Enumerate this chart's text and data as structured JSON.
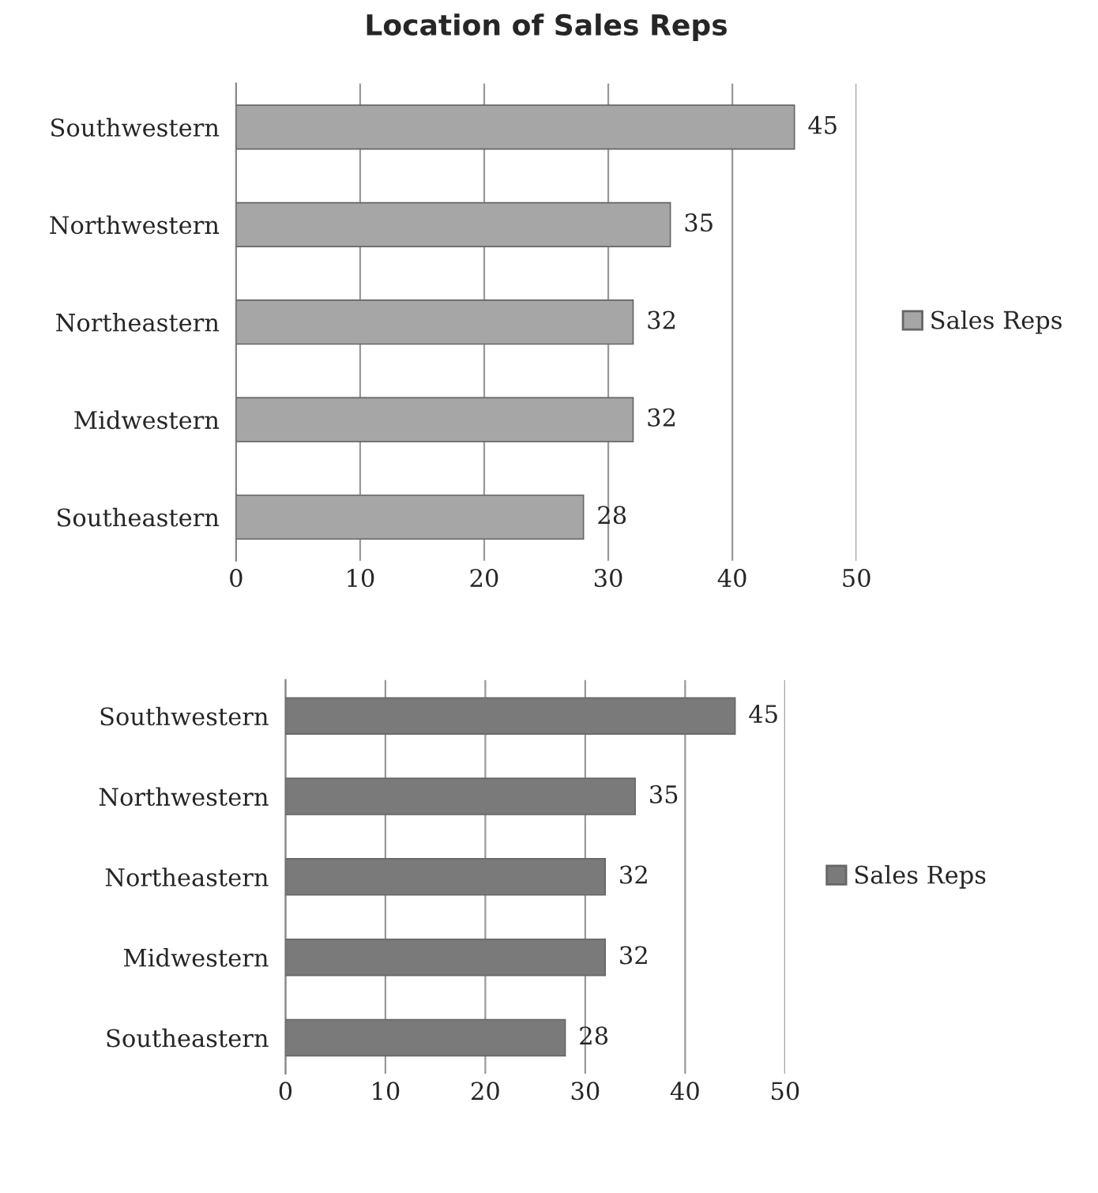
{
  "chart_data": [
    {
      "type": "bar",
      "orientation": "horizontal",
      "title": "Location of Sales Reps",
      "categories": [
        "Southwestern",
        "Northwestern",
        "Northeastern",
        "Midwestern",
        "Southeastern"
      ],
      "series": [
        {
          "name": "Sales Reps",
          "color": "#a6a6a6",
          "values": [
            45,
            35,
            32,
            32,
            28
          ]
        }
      ],
      "xlim": [
        0,
        50
      ],
      "xticks": [
        0,
        10,
        20,
        30,
        40,
        50
      ],
      "grid": "x",
      "legend": "right",
      "data_labels": true
    },
    {
      "type": "bar",
      "orientation": "horizontal",
      "categories": [
        "Southwestern",
        "Northwestern",
        "Northeastern",
        "Midwestern",
        "Southeastern"
      ],
      "series": [
        {
          "name": "Sales Reps",
          "color": "#7a7a7a",
          "values": [
            45,
            35,
            32,
            32,
            28
          ]
        }
      ],
      "xlim": [
        0,
        50
      ],
      "xticks": [
        0,
        10,
        20,
        30,
        40,
        50
      ],
      "grid": "x",
      "legend": "right",
      "data_labels": true
    }
  ]
}
